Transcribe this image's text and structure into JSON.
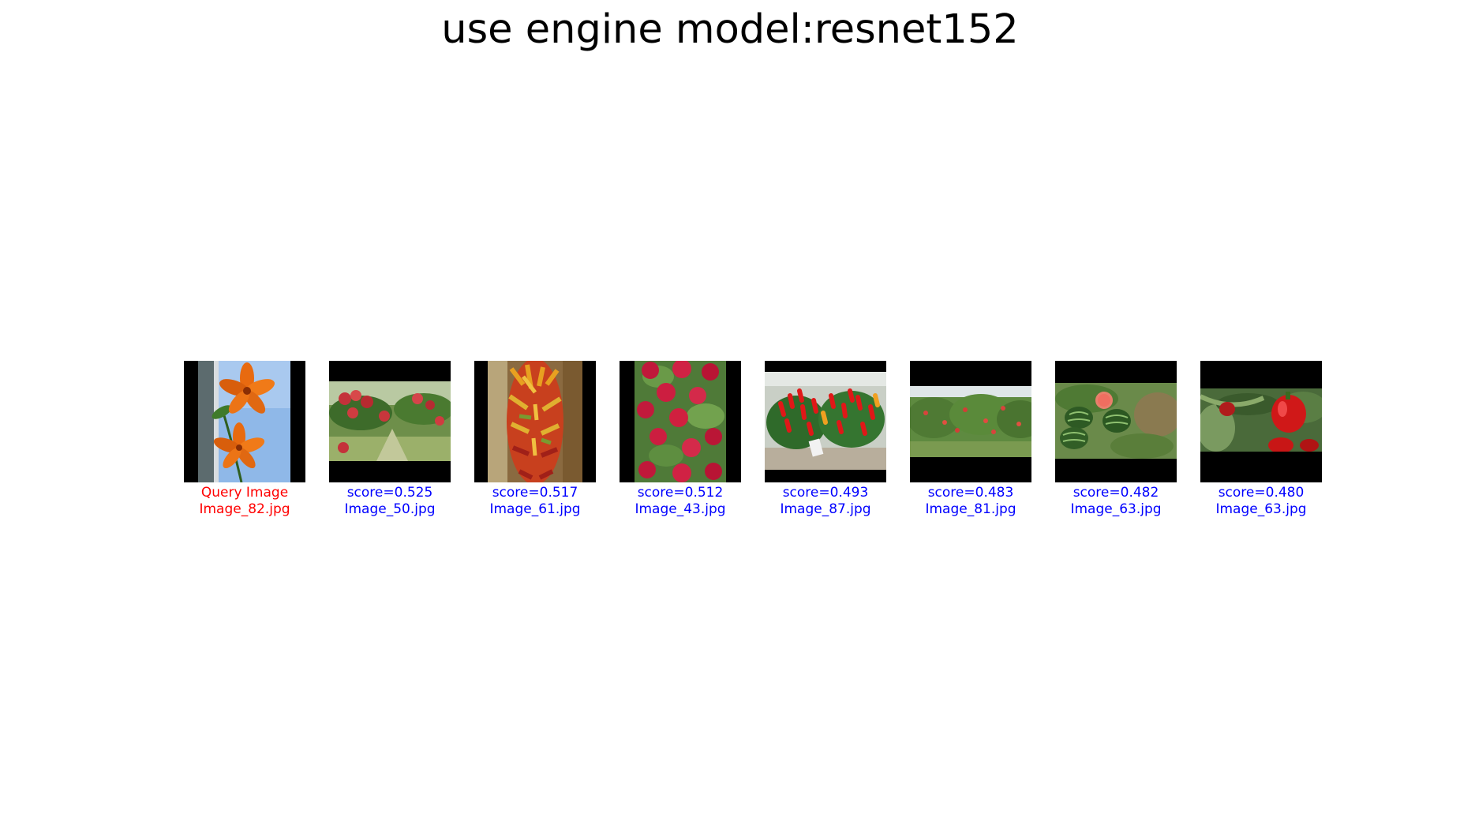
{
  "title": "use engine model:resnet152",
  "query": {
    "label": "Query Image",
    "filename": "Image_82.jpg",
    "color": "#ff0000"
  },
  "results_color": "#0000ff",
  "results": [
    {
      "score": "score=0.525",
      "filename": "Image_50.jpg"
    },
    {
      "score": "score=0.517",
      "filename": "Image_61.jpg"
    },
    {
      "score": "score=0.512",
      "filename": "Image_43.jpg"
    },
    {
      "score": "score=0.493",
      "filename": "Image_87.jpg"
    },
    {
      "score": "score=0.483",
      "filename": "Image_81.jpg"
    },
    {
      "score": "score=0.482",
      "filename": "Image_63.jpg"
    },
    {
      "score": "score=0.480",
      "filename": "Image_63.jpg"
    }
  ]
}
